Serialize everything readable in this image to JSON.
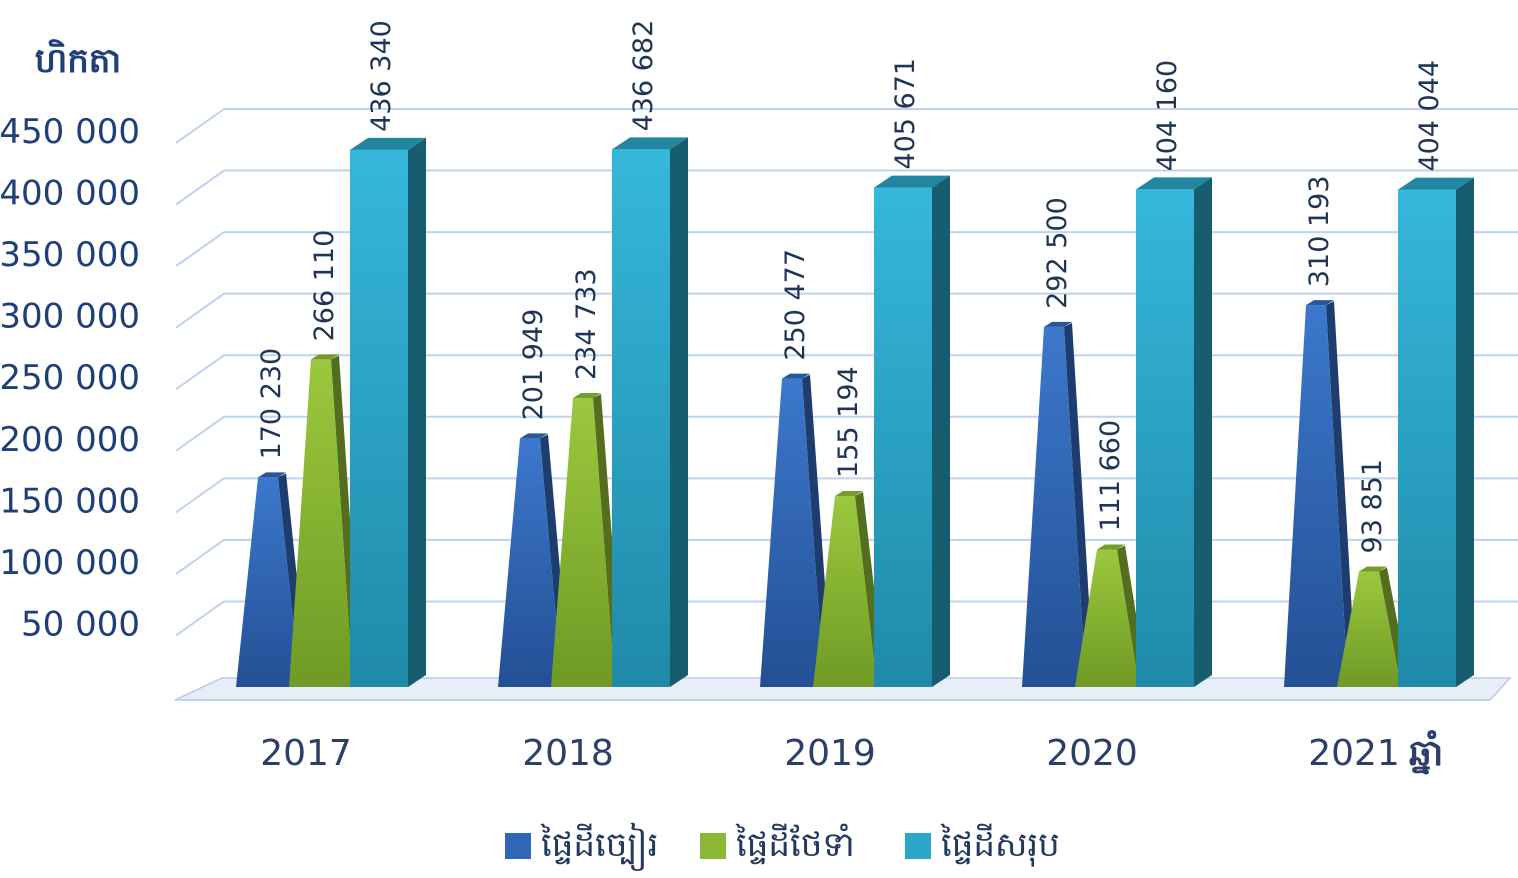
{
  "chart_data": {
    "type": "bar",
    "y_unit_label": "ហិកតា",
    "x_unit_label": "ឆ្នាំ",
    "categories": [
      "2017",
      "2018",
      "2019",
      "2020",
      "2021"
    ],
    "series": [
      {
        "name": "ផ្ទៃដីច្បៀរ",
        "color": "#2f66b6",
        "shape": "cone",
        "values": [
          170230,
          201949,
          250477,
          292500,
          310193
        ],
        "labels": [
          "170 230",
          "201 949",
          "250 477",
          "292 500",
          "310 193"
        ]
      },
      {
        "name": "ផ្ទៃដីថែទាំ",
        "color": "#8ab834",
        "shape": "cone",
        "values": [
          266110,
          234733,
          155194,
          111660,
          93851
        ],
        "labels": [
          "266 110",
          "234 733",
          "155 194",
          "111 660",
          "93 851"
        ]
      },
      {
        "name": "ផ្ទៃដីសរុប",
        "color": "#2aa7c9",
        "shape": "box",
        "values": [
          436340,
          436682,
          405671,
          404160,
          404044
        ],
        "labels": [
          "436 340",
          "436 682",
          "405 671",
          "404 160",
          "404 044"
        ]
      }
    ],
    "ylim": [
      0,
      450000
    ],
    "y_ticks": [
      50000,
      100000,
      150000,
      200000,
      250000,
      300000,
      350000,
      400000,
      450000
    ],
    "y_tick_labels": [
      "50 000",
      "100 000",
      "150 000",
      "200 000",
      "250 000",
      "300 000",
      "350 000",
      "400 000",
      "450 000"
    ],
    "grid": true,
    "legend_position": "bottom"
  }
}
